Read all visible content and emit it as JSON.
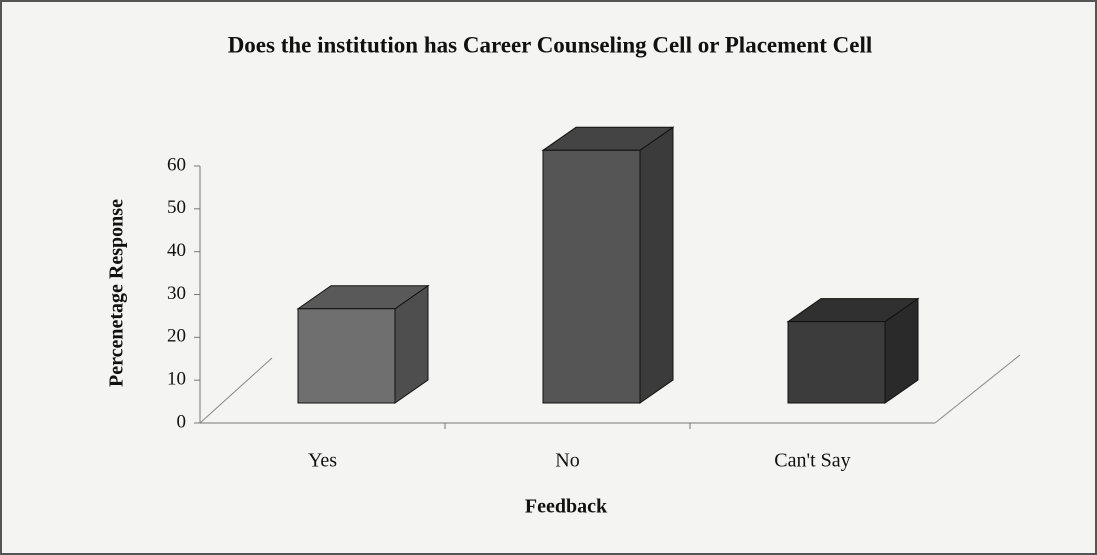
{
  "chart_data": {
    "type": "bar3d",
    "title": "Does the institution has Career Counseling Cell or Placement Cell",
    "x_label": "Feedback",
    "y_label": "Percenetage Response",
    "categories": [
      "Yes",
      "No",
      "Can't Say"
    ],
    "values": [
      22,
      59,
      19
    ],
    "colors": [
      "#6f6f6f",
      "#555555",
      "#3c3c3c"
    ],
    "ylim": [
      0,
      60
    ],
    "yticks": [
      0,
      10,
      20,
      30,
      40,
      50,
      60
    ],
    "grid": false
  }
}
